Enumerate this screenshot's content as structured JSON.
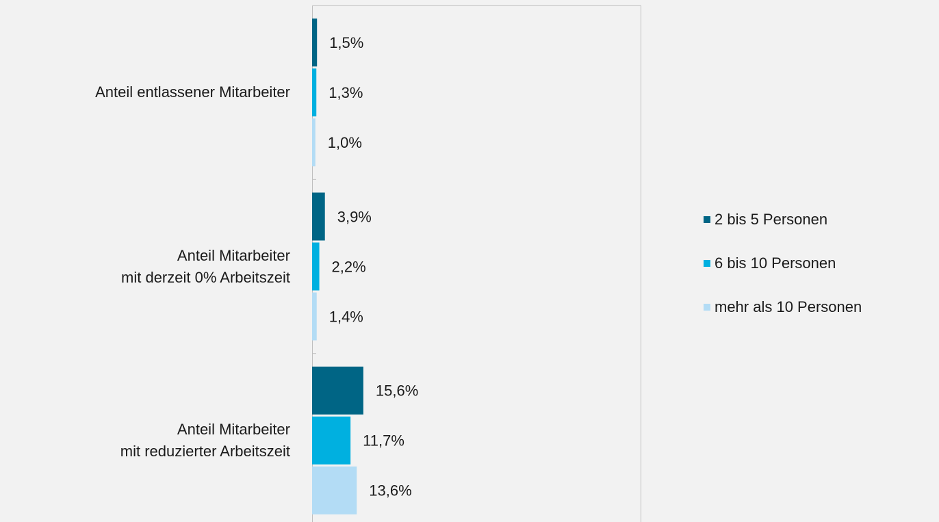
{
  "chart_data": {
    "type": "hbar",
    "categories": [
      "Anteil entlassener Mitarbeiter",
      "Anteil Mitarbeiter \nmit derzeit 0% Arbeitszeit",
      "Anteil Mitarbeiter \nmit reduzierter Arbeitszeit"
    ],
    "series": [
      {
        "name": "2 bis 5 Personen",
        "color": "#006585",
        "values": [
          1.5,
          3.9,
          15.6
        ],
        "value_labels": [
          "1,5%",
          "3,9%",
          "15,6%"
        ]
      },
      {
        "name": "6 bis 10 Personen",
        "color": "#00b0e0",
        "values": [
          1.3,
          2.2,
          11.7
        ],
        "value_labels": [
          "1,3%",
          "2,2%",
          "11,7%"
        ]
      },
      {
        "name": "mehr als 10 Personen",
        "color": "#b3dcf5",
        "values": [
          1.0,
          1.4,
          13.6
        ],
        "value_labels": [
          "1,0%",
          "1,4%",
          "13,6%"
        ]
      }
    ],
    "xlim": [
      0,
      100
    ],
    "legend": "right"
  }
}
